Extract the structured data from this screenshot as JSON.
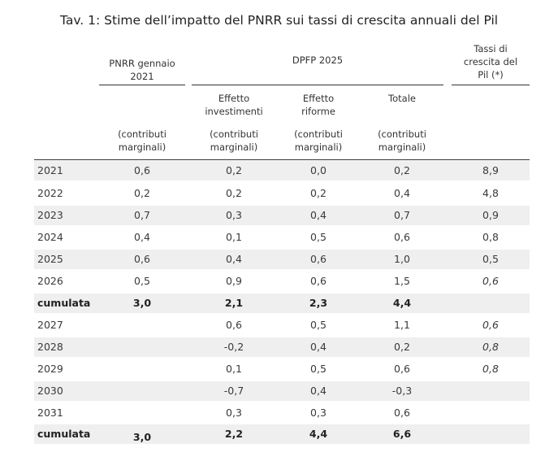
{
  "title": "Tav. 1: Stime dell’impatto del PNRR sui tassi di crescita annuali del Pil",
  "headers": {
    "pnrr_l1": "PNRR gennaio",
    "pnrr_l2": "2021",
    "dpfp": "DPFP 2025",
    "tassi_l1": "Tassi di",
    "tassi_l2": "crescita del",
    "tassi_l3": "Pil (*)",
    "inv_l1": "Effetto",
    "inv_l2": "investimenti",
    "rif_l1": "Effetto",
    "rif_l2": "riforme",
    "tot": "Totale",
    "contrib_l1": "(contributi",
    "contrib_l2": "marginali)"
  },
  "rows": [
    {
      "label": "2021",
      "pnrr": "0,6",
      "inv": "0,2",
      "rif": "0,0",
      "tot": "0,2",
      "pil": "8,9"
    },
    {
      "label": "2022",
      "pnrr": "0,2",
      "inv": "0,2",
      "rif": "0,2",
      "tot": "0,4",
      "pil": "4,8"
    },
    {
      "label": "2023",
      "pnrr": "0,7",
      "inv": "0,3",
      "rif": "0,4",
      "tot": "0,7",
      "pil": "0,9"
    },
    {
      "label": "2024",
      "pnrr": "0,4",
      "inv": "0,1",
      "rif": "0,5",
      "tot": "0,6",
      "pil": "0,8"
    },
    {
      "label": "2025",
      "pnrr": "0,6",
      "inv": "0,4",
      "rif": "0,6",
      "tot": "1,0",
      "pil": "0,5"
    },
    {
      "label": "2026",
      "pnrr": "0,5",
      "inv": "0,9",
      "rif": "0,6",
      "tot": "1,5",
      "pil": "0,6"
    },
    {
      "label": "cumulata",
      "pnrr": "3,0",
      "inv": "2,1",
      "rif": "2,3",
      "tot": "4,4",
      "pil": ""
    },
    {
      "label": "2027",
      "pnrr": "",
      "inv": "0,6",
      "rif": "0,5",
      "tot": "1,1",
      "pil": "0,6"
    },
    {
      "label": "2028",
      "pnrr": "",
      "inv": "-0,2",
      "rif": "0,4",
      "tot": "0,2",
      "pil": "0,8"
    },
    {
      "label": "2029",
      "pnrr": "",
      "inv": "0,1",
      "rif": "0,5",
      "tot": "0,6",
      "pil": "0,8"
    },
    {
      "label": "2030",
      "pnrr": "",
      "inv": "-0,7",
      "rif": "0,4",
      "tot": "-0,3",
      "pil": ""
    },
    {
      "label": "2031",
      "pnrr": "",
      "inv": "0,3",
      "rif": "0,3",
      "tot": "0,6",
      "pil": ""
    },
    {
      "label": "cumulata",
      "pnrr": "3,0",
      "inv": "2,2",
      "rif": "4,4",
      "tot": "6,6",
      "pil": ""
    }
  ]
}
